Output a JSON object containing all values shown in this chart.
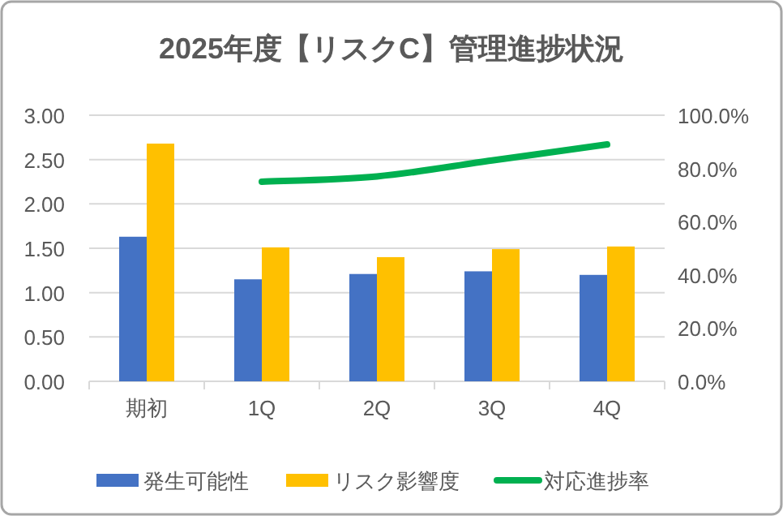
{
  "chart_data": {
    "type": "bar",
    "title": "2025年度【リスクC】管理進捗状況",
    "categories": [
      "期初",
      "1Q",
      "2Q",
      "3Q",
      "4Q"
    ],
    "series": [
      {
        "name": "発生可能性",
        "color": "#4472c4",
        "values": [
          1.63,
          1.15,
          1.21,
          1.24,
          1.2
        ]
      },
      {
        "name": "リスク影響度",
        "color": "#ffc000",
        "values": [
          2.68,
          1.51,
          1.4,
          1.49,
          1.52
        ]
      },
      {
        "name": "対応進捗率",
        "type": "line",
        "axis": "y2",
        "color": "#00b050",
        "values": [
          null,
          75,
          77,
          83,
          89
        ]
      }
    ],
    "ylim": [
      0,
      3
    ],
    "yticks": [
      {
        "value": 0,
        "label": "0.00"
      },
      {
        "value": 0.5,
        "label": "0.50"
      },
      {
        "value": 1,
        "label": "1.00"
      },
      {
        "value": 1.5,
        "label": "1.50"
      },
      {
        "value": 2,
        "label": "2.00"
      },
      {
        "value": 2.5,
        "label": "2.50"
      },
      {
        "value": 3,
        "label": "3.00"
      }
    ],
    "y2lim": [
      0,
      100
    ],
    "y2ticks": [
      {
        "value": 0,
        "label": "0.0%"
      },
      {
        "value": 20,
        "label": "20.0%"
      },
      {
        "value": 40,
        "label": "40.0%"
      },
      {
        "value": 60,
        "label": "60.0%"
      },
      {
        "value": 80,
        "label": "80.0%"
      },
      {
        "value": 100,
        "label": "100.0%"
      }
    ],
    "grid": "y",
    "legend": "bottom"
  }
}
